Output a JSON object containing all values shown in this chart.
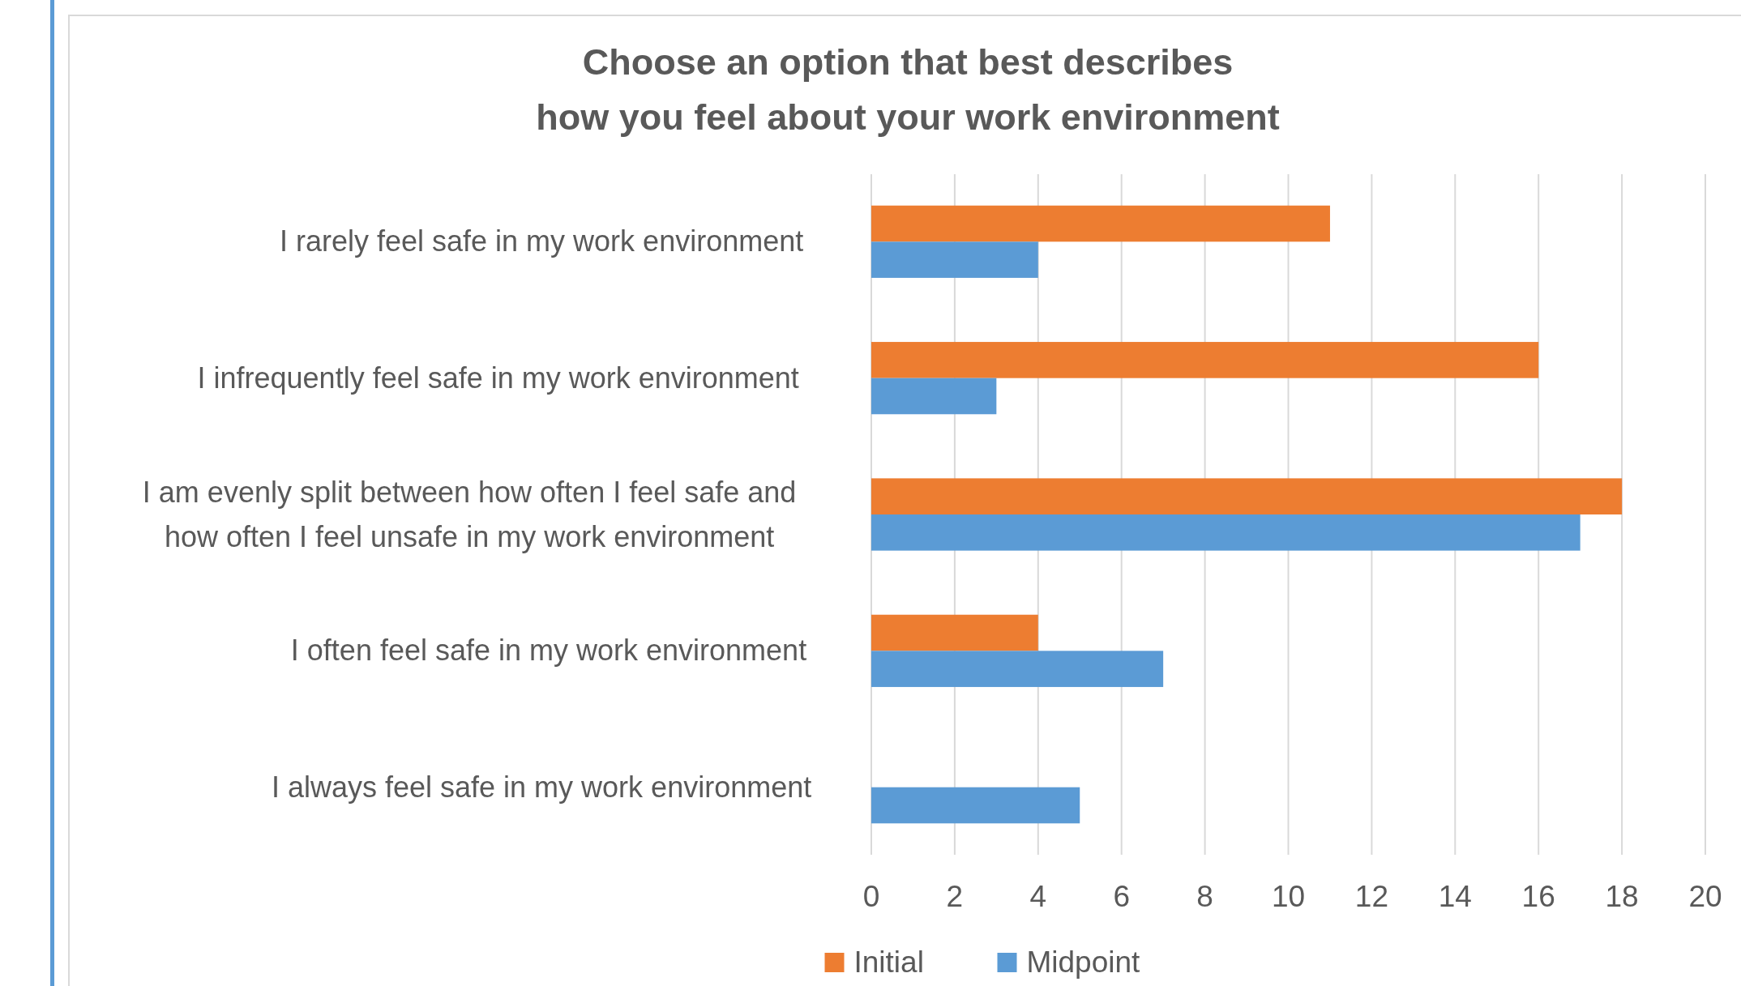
{
  "chart_data": {
    "type": "bar",
    "orientation": "horizontal",
    "title": "Choose an option that best describes\nhow you feel about your work environment",
    "categories": [
      "I rarely feel safe in my work environment",
      "I infrequently feel safe in my work environment",
      "I am evenly split between how often I feel safe and how often I feel unsafe in my work environment",
      "I often feel safe in my work environment",
      "I always feel safe in my work environment"
    ],
    "series": [
      {
        "name": "Initial",
        "color": "#ed7d31",
        "values": [
          11,
          16,
          18,
          4,
          0
        ]
      },
      {
        "name": "Midpoint",
        "color": "#5b9bd5",
        "values": [
          4,
          3,
          17,
          7,
          5
        ]
      }
    ],
    "xlim": [
      0,
      20
    ],
    "xticks": [
      0,
      2,
      4,
      6,
      8,
      10,
      12,
      14,
      16,
      18,
      20
    ],
    "grid": "x",
    "legend": "bottom"
  }
}
